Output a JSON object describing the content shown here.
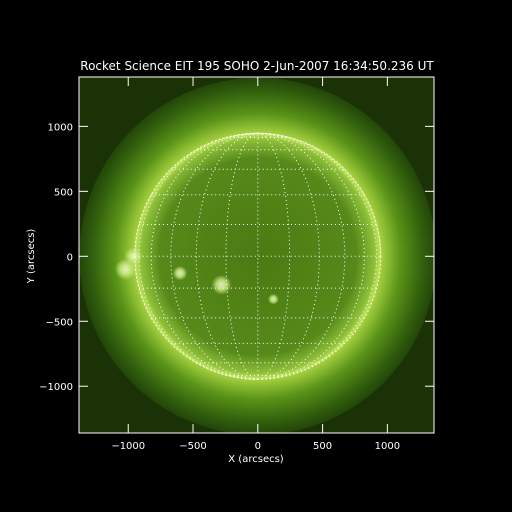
{
  "title": "Rocket Science EIT 195 SOHO  2-Jun-2007 16:34:50.236 UT",
  "x_axis": {
    "label": "X (arcsecs)",
    "range": [
      -1380,
      1360
    ],
    "ticks": [
      -1000,
      -500,
      0,
      500,
      1000
    ],
    "tick_labels": [
      "−1000",
      "−500",
      "0",
      "500",
      "1000"
    ]
  },
  "y_axis": {
    "label": "Y (arcsecs)",
    "range": [
      -1360,
      1380
    ],
    "ticks": [
      -1000,
      -500,
      0,
      500,
      1000
    ],
    "tick_labels": [
      "−1000",
      "−500",
      "0",
      "500",
      "1000"
    ]
  },
  "image": {
    "colormap": "EIT 195 green",
    "colors": {
      "background": "#000000",
      "corona_dark": "#1f4208",
      "corona_mid": "#5f9618",
      "limb": "#d8ee70",
      "disk": "#4a7a12",
      "grid": "#ffffff"
    },
    "solar_radius_arcsec": 950,
    "grid_spacing_deg": 15,
    "bright_regions": [
      "east-limb-active-region",
      "central-south-active-region"
    ]
  }
}
